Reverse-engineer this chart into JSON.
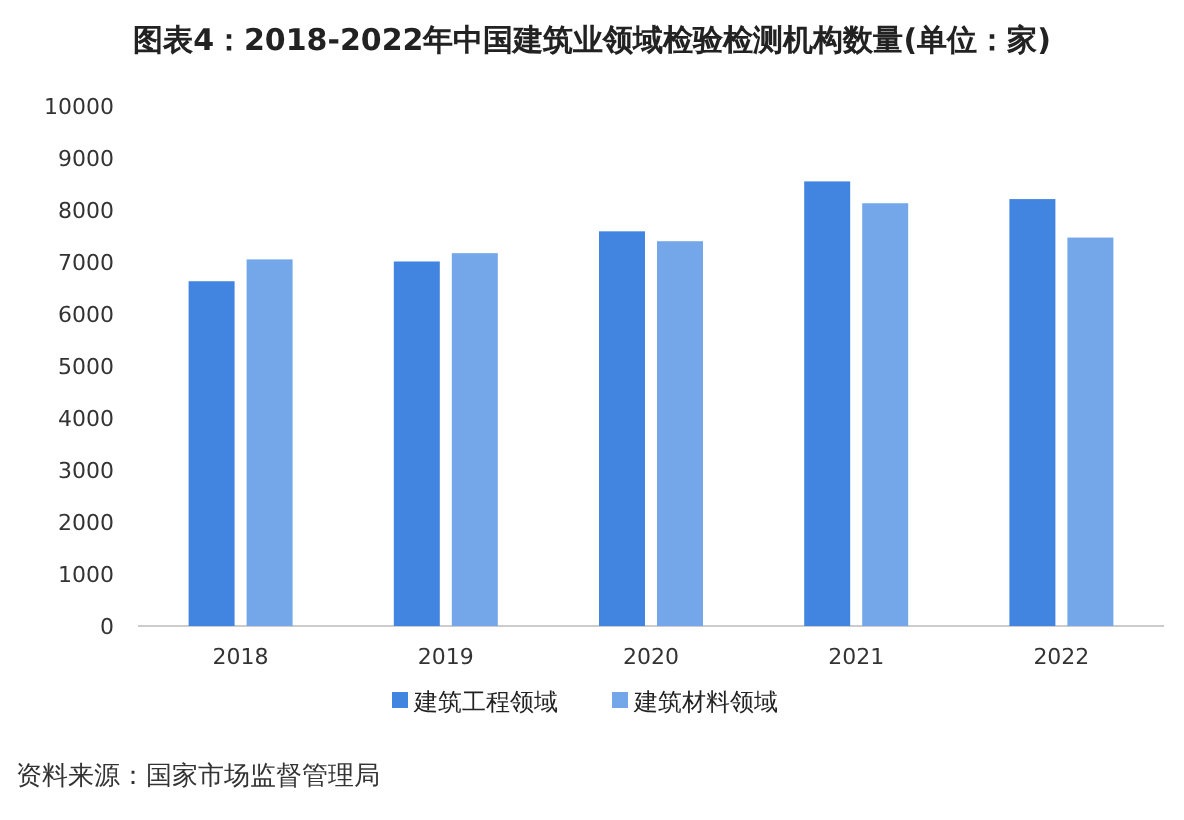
{
  "chart_data": {
    "type": "bar",
    "title": "图表4：2018-2022年中国建筑业领域检验检测机构数量(单位：家)",
    "categories": [
      "2018",
      "2019",
      "2020",
      "2021",
      "2022"
    ],
    "series": [
      {
        "name": "建筑工程领域",
        "color": "#4285e0",
        "values": [
          6630,
          7010,
          7590,
          8550,
          8210
        ]
      },
      {
        "name": "建筑材料领域",
        "color": "#74a7ea",
        "values": [
          7050,
          7170,
          7400,
          8130,
          7470
        ]
      }
    ],
    "ylim": [
      0,
      10000
    ],
    "yticks": [
      0,
      1000,
      2000,
      3000,
      4000,
      5000,
      6000,
      7000,
      8000,
      9000,
      10000
    ],
    "grid": false,
    "legend": "bottom",
    "annotations": [
      "资料来源：国家市场监督管理局"
    ]
  }
}
